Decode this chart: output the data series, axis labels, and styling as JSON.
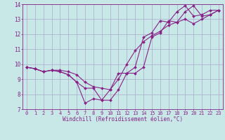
{
  "xlabel": "Windchill (Refroidissement éolien,°C)",
  "bg_color": "#c8e8e8",
  "grid_color": "#aaaacc",
  "line_color": "#882288",
  "xlim": [
    -0.5,
    23.5
  ],
  "ylim": [
    7,
    14
  ],
  "xticks": [
    0,
    1,
    2,
    3,
    4,
    5,
    6,
    7,
    8,
    9,
    10,
    11,
    12,
    13,
    14,
    15,
    16,
    17,
    18,
    19,
    20,
    21,
    22,
    23
  ],
  "yticks": [
    7,
    8,
    9,
    10,
    11,
    12,
    13,
    14
  ],
  "line1_x": [
    0,
    1,
    2,
    3,
    4,
    5,
    6,
    7,
    8,
    9,
    10,
    11,
    12,
    13,
    14,
    15,
    16,
    17,
    18,
    19,
    20,
    21,
    22,
    23
  ],
  "line1_y": [
    9.8,
    9.7,
    9.5,
    9.6,
    9.5,
    9.3,
    8.8,
    7.4,
    7.7,
    7.6,
    8.3,
    9.4,
    9.4,
    9.8,
    11.8,
    12.1,
    12.9,
    12.8,
    13.5,
    13.9,
    13.2,
    13.3,
    13.6,
    13.6
  ],
  "line2_x": [
    0,
    1,
    2,
    3,
    4,
    5,
    6,
    7,
    8,
    9,
    10,
    11,
    12,
    13,
    14,
    15,
    16,
    17,
    18,
    19,
    20,
    21,
    22,
    23
  ],
  "line2_y": [
    9.8,
    9.7,
    9.5,
    9.6,
    9.5,
    9.3,
    8.8,
    8.4,
    8.4,
    7.6,
    7.6,
    8.3,
    9.4,
    9.4,
    9.8,
    11.8,
    12.1,
    12.9,
    12.8,
    13.5,
    13.9,
    13.2,
    13.3,
    13.6
  ],
  "line3_x": [
    0,
    1,
    2,
    3,
    4,
    5,
    6,
    7,
    8,
    9,
    10,
    11,
    12,
    13,
    14,
    15,
    16,
    17,
    18,
    19,
    20,
    21,
    22,
    23
  ],
  "line3_y": [
    9.8,
    9.7,
    9.5,
    9.6,
    9.6,
    9.5,
    9.3,
    8.8,
    8.5,
    8.4,
    8.3,
    9.0,
    10.0,
    10.9,
    11.5,
    11.9,
    12.2,
    12.6,
    12.8,
    13.0,
    12.7,
    13.0,
    13.3,
    13.6
  ],
  "tick_fontsize": 5.0,
  "xlabel_fontsize": 5.5,
  "marker_size": 2.0,
  "line_width": 0.8
}
